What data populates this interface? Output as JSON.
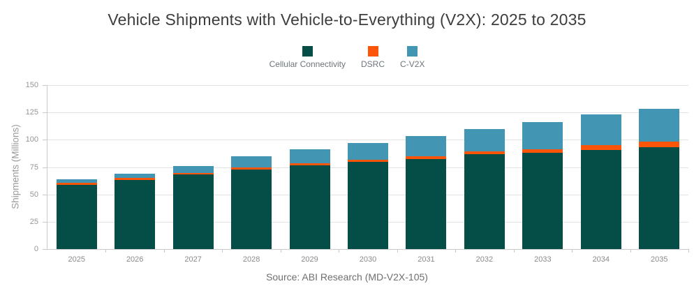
{
  "title": "Vehicle Shipments with Vehicle-to-Everything (V2X): 2025 to 2035",
  "source": "Source: ABI Research (MD-V2X-105)",
  "chart_data": {
    "type": "bar",
    "stacked": true,
    "title": "Vehicle Shipments with Vehicle-to-Everything (V2X): 2025 to 2035",
    "categories": [
      "2025",
      "2026",
      "2027",
      "2028",
      "2029",
      "2030",
      "2031",
      "2032",
      "2033",
      "2034",
      "2035"
    ],
    "series": [
      {
        "name": "Cellular Connectivity",
        "color": "#054e48",
        "values": [
          59,
          63.5,
          68,
          72.5,
          76.5,
          79.5,
          82.5,
          86.5,
          88,
          90.5,
          93.5
        ]
      },
      {
        "name": "DSRC",
        "color": "#fc5408",
        "values": [
          1.5,
          1.5,
          1.5,
          2,
          2,
          2.5,
          2.5,
          3,
          3.5,
          4.5,
          5
        ]
      },
      {
        "name": "C-V2X",
        "color": "#4296b4",
        "values": [
          3.5,
          4,
          6.5,
          10.5,
          12.5,
          15,
          18.5,
          20.5,
          25,
          28,
          29.5
        ]
      }
    ],
    "totals": [
      64,
      69,
      76,
      85,
      91,
      97,
      103.5,
      110,
      116.5,
      123,
      128
    ],
    "xlabel": "",
    "ylabel": "Shipments (Millions)",
    "ylim": [
      0,
      150
    ],
    "ytick_step": 25,
    "yticks": [
      "0",
      "25",
      "50",
      "75",
      "100",
      "125",
      "150"
    ],
    "grid": true,
    "legend_position": "top-center"
  },
  "palette": {
    "title_text": "#3d3d3d",
    "gridline": "#e2e2e2",
    "axis_line": "#c9c9c9",
    "y_tick_label": "#959595",
    "x_tick_label": "#8a8a8a",
    "axis_title": "#9a9a9a",
    "legend_label": "#6d757b",
    "source_text": "#6f6f6f",
    "background": "#ffffff"
  }
}
